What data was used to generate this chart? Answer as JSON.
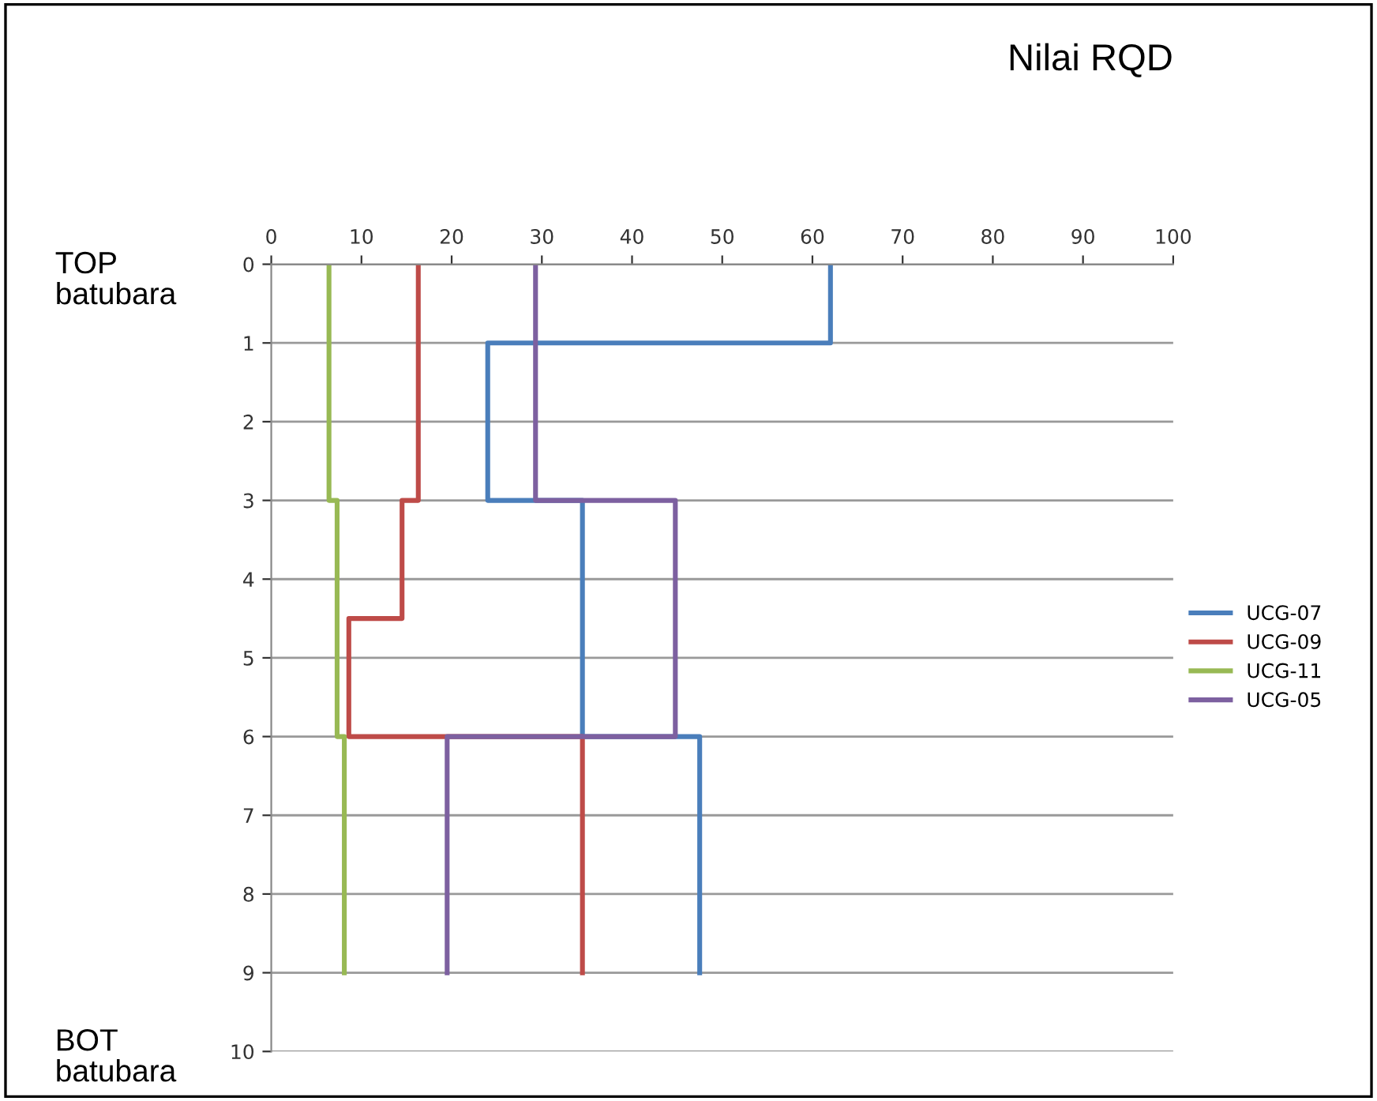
{
  "chart_data": {
    "type": "line",
    "xlabel": "Nilai RQD",
    "xlim": [
      0,
      100
    ],
    "xticks": [
      0,
      10,
      20,
      30,
      40,
      50,
      60,
      70,
      80,
      90,
      100
    ],
    "ylim": [
      10,
      0
    ],
    "yticks": [
      0,
      1,
      2,
      3,
      4,
      5,
      6,
      7,
      8,
      9,
      10
    ],
    "grid": "y",
    "legend": "right",
    "marker": "none",
    "line_style": "solid",
    "annotations": [
      "TOP\nbatubara",
      "BOT\nbatubara"
    ],
    "series": [
      {
        "name": "UCG-07",
        "color": "#4a7ebb",
        "x": [
          62,
          62,
          24,
          24,
          34.5,
          34.5,
          47.5,
          47.5
        ],
        "values": [
          0,
          1,
          1,
          3,
          3,
          6,
          6,
          9
        ]
      },
      {
        "name": "UCG-09",
        "color": "#be4b48",
        "x": [
          16.3,
          16.3,
          14.5,
          14.5,
          8.6,
          8.6,
          34.5,
          34.5
        ],
        "values": [
          0,
          3,
          3,
          4.5,
          4.5,
          6,
          6,
          9
        ]
      },
      {
        "name": "UCG-11",
        "color": "#98b954",
        "x": [
          6.4,
          6.4,
          7.3,
          7.3,
          8.1,
          8.1
        ],
        "values": [
          0,
          3,
          3,
          6,
          6,
          9
        ]
      },
      {
        "name": "UCG-05",
        "color": "#7d60a0",
        "x": [
          29.3,
          29.3,
          44.8,
          44.8,
          19.5,
          19.5
        ],
        "values": [
          0,
          3,
          3,
          6,
          6,
          9
        ]
      }
    ]
  }
}
